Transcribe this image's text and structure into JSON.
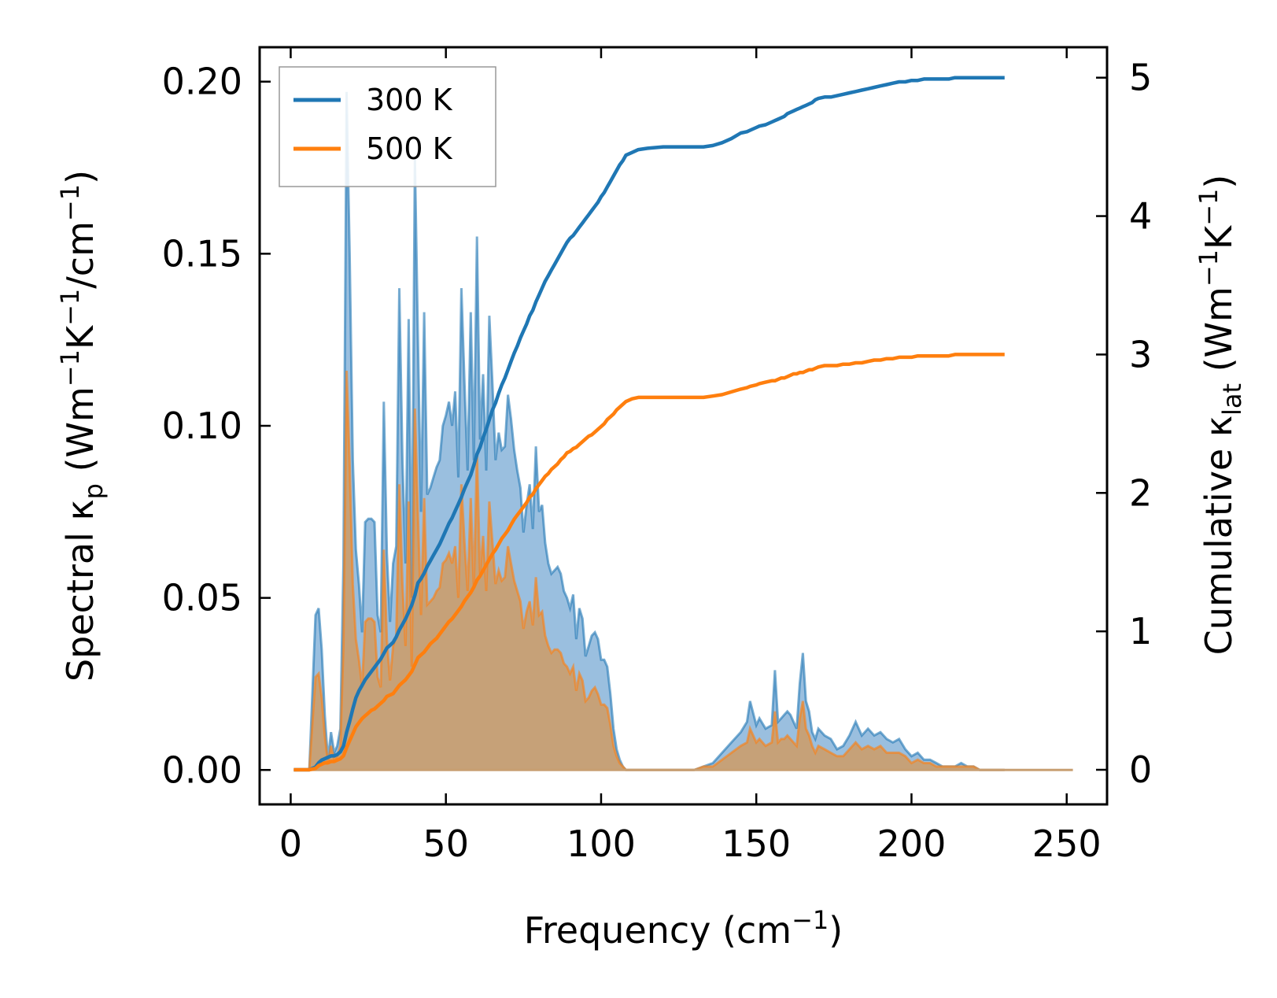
{
  "chart_data": {
    "type": "area",
    "title": "",
    "xlabel": {
      "base": "Frequency (cm",
      "sup": "−1",
      "tail": ")"
    },
    "ylabel_left": {
      "parts": [
        {
          "t": "Spectral κ"
        },
        {
          "t": "p",
          "sub": true
        },
        {
          "t": " (Wm"
        },
        {
          "t": "−1",
          "sup": true
        },
        {
          "t": "K"
        },
        {
          "t": "−1",
          "sup": true
        },
        {
          "t": "/cm"
        },
        {
          "t": "−1",
          "sup": true
        },
        {
          "t": ")"
        }
      ]
    },
    "ylabel_right": {
      "parts": [
        {
          "t": "Cumulative κ"
        },
        {
          "t": "lat",
          "sub": true
        },
        {
          "t": " (Wm"
        },
        {
          "t": "−1",
          "sup": true
        },
        {
          "t": "K"
        },
        {
          "t": "−1",
          "sup": true
        },
        {
          "t": ")"
        }
      ]
    },
    "xlim": [
      -10,
      263
    ],
    "ylim_left": [
      -0.01,
      0.21
    ],
    "ylim_right": [
      -0.25,
      5.22
    ],
    "xticks": [
      0,
      50,
      100,
      150,
      200,
      250
    ],
    "xtick_labels": [
      "0",
      "50",
      "100",
      "150",
      "200",
      "250"
    ],
    "yticks_left": [
      0.0,
      0.05,
      0.1,
      0.15,
      0.2
    ],
    "ytick_labels_left": [
      "0.00",
      "0.05",
      "0.10",
      "0.15",
      "0.20"
    ],
    "yticks_right": [
      0,
      1,
      2,
      3,
      4,
      5
    ],
    "ytick_labels_right": [
      "0",
      "1",
      "2",
      "3",
      "4",
      "5"
    ],
    "legend": {
      "position": "top-left"
    },
    "spectral": {
      "x": [
        1,
        5,
        6,
        8,
        9,
        10,
        11,
        12,
        13,
        14,
        15,
        16,
        17,
        18,
        19,
        20,
        21,
        22,
        23,
        24,
        25,
        26,
        27,
        28,
        29,
        30,
        31,
        32,
        33,
        34,
        35,
        36,
        37,
        38,
        39,
        40,
        41,
        42,
        43,
        44,
        45,
        46,
        47,
        48,
        49,
        50,
        51,
        52,
        53,
        54,
        55,
        56,
        57,
        58,
        59,
        60,
        61,
        62,
        63,
        64,
        65,
        66,
        67,
        68,
        69,
        70,
        71,
        72,
        73,
        74,
        75,
        76,
        77,
        78,
        79,
        80,
        81,
        82,
        83,
        84,
        85,
        86,
        87,
        88,
        89,
        90,
        91,
        92,
        93,
        94,
        95,
        96,
        97,
        98,
        99,
        100,
        101,
        102,
        103,
        104,
        105,
        106,
        107,
        108,
        110,
        112,
        115,
        120,
        125,
        130,
        133,
        136,
        139,
        142,
        145,
        147,
        148,
        150,
        151,
        153,
        155,
        156,
        157,
        158,
        159,
        160,
        161,
        162,
        163,
        164,
        165,
        166,
        167,
        168,
        169,
        170,
        172,
        174,
        176,
        178,
        180,
        182,
        184,
        186,
        188,
        190,
        192,
        194,
        196,
        198,
        200,
        202,
        204,
        206,
        208,
        210,
        212,
        214,
        216,
        218,
        220,
        222,
        225,
        230,
        240,
        252
      ]
    },
    "series": [
      {
        "name": "300 K",
        "color": "#1f77b4",
        "fill": "#8fb8dc",
        "spectral": [
          0,
          0,
          0,
          0.045,
          0.047,
          0.035,
          0.016,
          0.003,
          0.011,
          0.005,
          0.007,
          0.012,
          0.06,
          0.197,
          0.15,
          0.09,
          0.064,
          0.054,
          0.04,
          0.072,
          0.073,
          0.073,
          0.072,
          0.045,
          0.04,
          0.107,
          0.063,
          0.043,
          0.06,
          0.065,
          0.14,
          0.09,
          0.06,
          0.131,
          0.05,
          0.178,
          0.125,
          0.075,
          0.133,
          0.08,
          0.082,
          0.085,
          0.088,
          0.09,
          0.1,
          0.103,
          0.107,
          0.1,
          0.11,
          0.085,
          0.14,
          0.112,
          0.087,
          0.133,
          0.09,
          0.155,
          0.096,
          0.115,
          0.087,
          0.132,
          0.112,
          0.09,
          0.098,
          0.093,
          0.094,
          0.109,
          0.102,
          0.093,
          0.087,
          0.082,
          0.069,
          0.077,
          0.083,
          0.07,
          0.094,
          0.075,
          0.077,
          0.066,
          0.06,
          0.057,
          0.058,
          0.059,
          0.057,
          0.052,
          0.05,
          0.047,
          0.051,
          0.038,
          0.047,
          0.044,
          0.033,
          0.036,
          0.039,
          0.04,
          0.038,
          0.032,
          0.032,
          0.03,
          0.022,
          0.012,
          0.006,
          0.003,
          0.001,
          0,
          0,
          0,
          0,
          0,
          0,
          0,
          0.001,
          0.002,
          0.005,
          0.008,
          0.011,
          0.014,
          0.02,
          0.013,
          0.015,
          0.012,
          0.013,
          0.029,
          0.014,
          0.015,
          0.016,
          0.017,
          0.016,
          0.014,
          0.012,
          0.025,
          0.034,
          0.02,
          0.017,
          0.011,
          0.009,
          0.012,
          0.01,
          0.009,
          0.006,
          0.007,
          0.01,
          0.014,
          0.01,
          0.012,
          0.01,
          0.011,
          0.009,
          0.008,
          0.009,
          0.006,
          0.004,
          0.005,
          0.003,
          0.003,
          0.002,
          0.001,
          0.001,
          0.001,
          0.002,
          0.001,
          0.001,
          0,
          0,
          0
        ],
        "cumulative": [
          0,
          0,
          0,
          0.02,
          0.05,
          0.07,
          0.08,
          0.09,
          0.1,
          0.1,
          0.11,
          0.13,
          0.17,
          0.27,
          0.35,
          0.44,
          0.52,
          0.57,
          0.61,
          0.65,
          0.68,
          0.71,
          0.74,
          0.77,
          0.8,
          0.84,
          0.88,
          0.9,
          0.92,
          0.96,
          1.01,
          1.05,
          1.09,
          1.14,
          1.19,
          1.26,
          1.35,
          1.38,
          1.42,
          1.47,
          1.51,
          1.55,
          1.59,
          1.63,
          1.68,
          1.73,
          1.78,
          1.82,
          1.87,
          1.92,
          1.97,
          2.03,
          2.08,
          2.13,
          2.2,
          2.28,
          2.33,
          2.4,
          2.46,
          2.53,
          2.6,
          2.65,
          2.72,
          2.78,
          2.83,
          2.89,
          2.95,
          3.01,
          3.06,
          3.12,
          3.17,
          3.22,
          3.28,
          3.32,
          3.38,
          3.43,
          3.48,
          3.53,
          3.57,
          3.61,
          3.65,
          3.69,
          3.73,
          3.77,
          3.81,
          3.84,
          3.86,
          3.89,
          3.92,
          3.95,
          3.98,
          4.01,
          4.04,
          4.07,
          4.1,
          4.14,
          4.17,
          4.21,
          4.25,
          4.29,
          4.33,
          4.37,
          4.4,
          4.44,
          4.46,
          4.48,
          4.49,
          4.5,
          4.5,
          4.5,
          4.5,
          4.51,
          4.53,
          4.56,
          4.6,
          4.61,
          4.62,
          4.64,
          4.65,
          4.66,
          4.68,
          4.69,
          4.7,
          4.71,
          4.72,
          4.74,
          4.75,
          4.76,
          4.77,
          4.78,
          4.79,
          4.8,
          4.81,
          4.82,
          4.84,
          4.85,
          4.86,
          4.86,
          4.87,
          4.88,
          4.89,
          4.9,
          4.91,
          4.92,
          4.93,
          4.94,
          4.95,
          4.96,
          4.97,
          4.97,
          4.98,
          4.98,
          4.99,
          4.99,
          4.99,
          4.99,
          4.99,
          5.0,
          5.0,
          5.0,
          5.0,
          5.0,
          5.0,
          5.0
        ]
      },
      {
        "name": "500 K",
        "color": "#ff7f0e",
        "fill": "#c89f72",
        "spectral": [
          0,
          0,
          0,
          0.027,
          0.028,
          0.021,
          0.01,
          0.002,
          0.007,
          0.003,
          0.004,
          0.007,
          0.036,
          0.116,
          0.089,
          0.054,
          0.038,
          0.032,
          0.024,
          0.043,
          0.044,
          0.044,
          0.043,
          0.027,
          0.024,
          0.064,
          0.038,
          0.026,
          0.036,
          0.039,
          0.083,
          0.054,
          0.036,
          0.078,
          0.03,
          0.105,
          0.074,
          0.045,
          0.079,
          0.048,
          0.049,
          0.05,
          0.052,
          0.053,
          0.06,
          0.061,
          0.063,
          0.06,
          0.065,
          0.05,
          0.083,
          0.066,
          0.052,
          0.079,
          0.053,
          0.092,
          0.057,
          0.068,
          0.052,
          0.078,
          0.066,
          0.054,
          0.058,
          0.055,
          0.056,
          0.065,
          0.06,
          0.055,
          0.052,
          0.049,
          0.041,
          0.046,
          0.049,
          0.042,
          0.056,
          0.045,
          0.046,
          0.039,
          0.036,
          0.034,
          0.035,
          0.035,
          0.034,
          0.031,
          0.03,
          0.028,
          0.03,
          0.023,
          0.028,
          0.026,
          0.02,
          0.021,
          0.023,
          0.024,
          0.022,
          0.019,
          0.019,
          0.018,
          0.013,
          0.007,
          0.004,
          0.002,
          0.001,
          0,
          0,
          0,
          0,
          0,
          0,
          0,
          0.001,
          0.001,
          0.003,
          0.005,
          0.007,
          0.008,
          0.012,
          0.008,
          0.009,
          0.007,
          0.008,
          0.017,
          0.008,
          0.009,
          0.009,
          0.01,
          0.009,
          0.008,
          0.007,
          0.015,
          0.02,
          0.012,
          0.01,
          0.007,
          0.005,
          0.007,
          0.006,
          0.005,
          0.004,
          0.004,
          0.006,
          0.008,
          0.006,
          0.007,
          0.006,
          0.007,
          0.005,
          0.005,
          0.005,
          0.004,
          0.002,
          0.003,
          0.002,
          0.002,
          0.001,
          0.001,
          0.001,
          0.001,
          0.001,
          0.001,
          0.001,
          0,
          0,
          0
        ],
        "cumulative": [
          0,
          0,
          0,
          0.01,
          0.03,
          0.04,
          0.05,
          0.05,
          0.06,
          0.06,
          0.07,
          0.08,
          0.1,
          0.16,
          0.21,
          0.26,
          0.31,
          0.34,
          0.37,
          0.39,
          0.41,
          0.43,
          0.44,
          0.46,
          0.48,
          0.5,
          0.53,
          0.54,
          0.55,
          0.58,
          0.61,
          0.63,
          0.65,
          0.68,
          0.71,
          0.76,
          0.81,
          0.83,
          0.85,
          0.88,
          0.91,
          0.93,
          0.95,
          0.98,
          1.01,
          1.04,
          1.07,
          1.09,
          1.12,
          1.15,
          1.18,
          1.22,
          1.25,
          1.28,
          1.32,
          1.37,
          1.4,
          1.44,
          1.48,
          1.52,
          1.56,
          1.59,
          1.63,
          1.67,
          1.7,
          1.73,
          1.77,
          1.81,
          1.84,
          1.87,
          1.9,
          1.93,
          1.97,
          1.99,
          2.03,
          2.06,
          2.09,
          2.12,
          2.14,
          2.17,
          2.19,
          2.21,
          2.24,
          2.26,
          2.29,
          2.3,
          2.32,
          2.33,
          2.35,
          2.37,
          2.39,
          2.41,
          2.42,
          2.44,
          2.46,
          2.48,
          2.5,
          2.53,
          2.55,
          2.57,
          2.6,
          2.62,
          2.64,
          2.66,
          2.68,
          2.69,
          2.69,
          2.69,
          2.69,
          2.69,
          2.69,
          2.7,
          2.71,
          2.73,
          2.75,
          2.76,
          2.77,
          2.78,
          2.79,
          2.8,
          2.81,
          2.81,
          2.82,
          2.83,
          2.83,
          2.84,
          2.85,
          2.86,
          2.86,
          2.87,
          2.87,
          2.88,
          2.89,
          2.89,
          2.9,
          2.91,
          2.92,
          2.92,
          2.92,
          2.93,
          2.93,
          2.94,
          2.94,
          2.95,
          2.96,
          2.96,
          2.97,
          2.97,
          2.98,
          2.98,
          2.98,
          2.99,
          2.99,
          2.99,
          2.99,
          2.99,
          2.99,
          3.0,
          3.0,
          3.0,
          3.0,
          3.0,
          3.0,
          3.0
        ]
      }
    ]
  }
}
